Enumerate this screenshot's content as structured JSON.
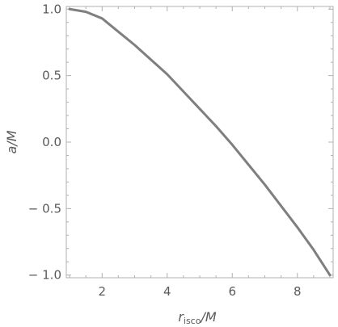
{
  "chart_data": {
    "type": "line",
    "title": "",
    "xlabel": {
      "main": "r",
      "sub": "isco",
      "suffix": "/M"
    },
    "ylabel": "a/M",
    "xlim": [
      0.9,
      9.1
    ],
    "ylim": [
      -1.02,
      1.02
    ],
    "xticks": [
      {
        "value": 2,
        "label": "2"
      },
      {
        "value": 4,
        "label": "4"
      },
      {
        "value": 6,
        "label": "6"
      },
      {
        "value": 8,
        "label": "8"
      }
    ],
    "yticks": [
      {
        "value": 1.0,
        "label": "1.0"
      },
      {
        "value": 0.5,
        "label": "0.5"
      },
      {
        "value": 0.0,
        "label": "0.0"
      },
      {
        "value": -0.5,
        "label": "− 0.5"
      },
      {
        "value": -1.0,
        "label": "− 1.0"
      }
    ],
    "grid": false,
    "series": [
      {
        "color": "#7f7f7f",
        "x": [
          1.0,
          1.5,
          2.0,
          2.5,
          3.0,
          3.5,
          4.0,
          4.5,
          5.0,
          5.5,
          6.0,
          6.5,
          7.0,
          7.5,
          8.0,
          8.5,
          9.0
        ],
        "y": [
          1.0,
          0.98,
          0.93,
          0.83,
          0.73,
          0.62,
          0.51,
          0.38,
          0.25,
          0.12,
          -0.02,
          -0.17,
          -0.32,
          -0.48,
          -0.64,
          -0.81,
          -1.0
        ]
      }
    ]
  }
}
